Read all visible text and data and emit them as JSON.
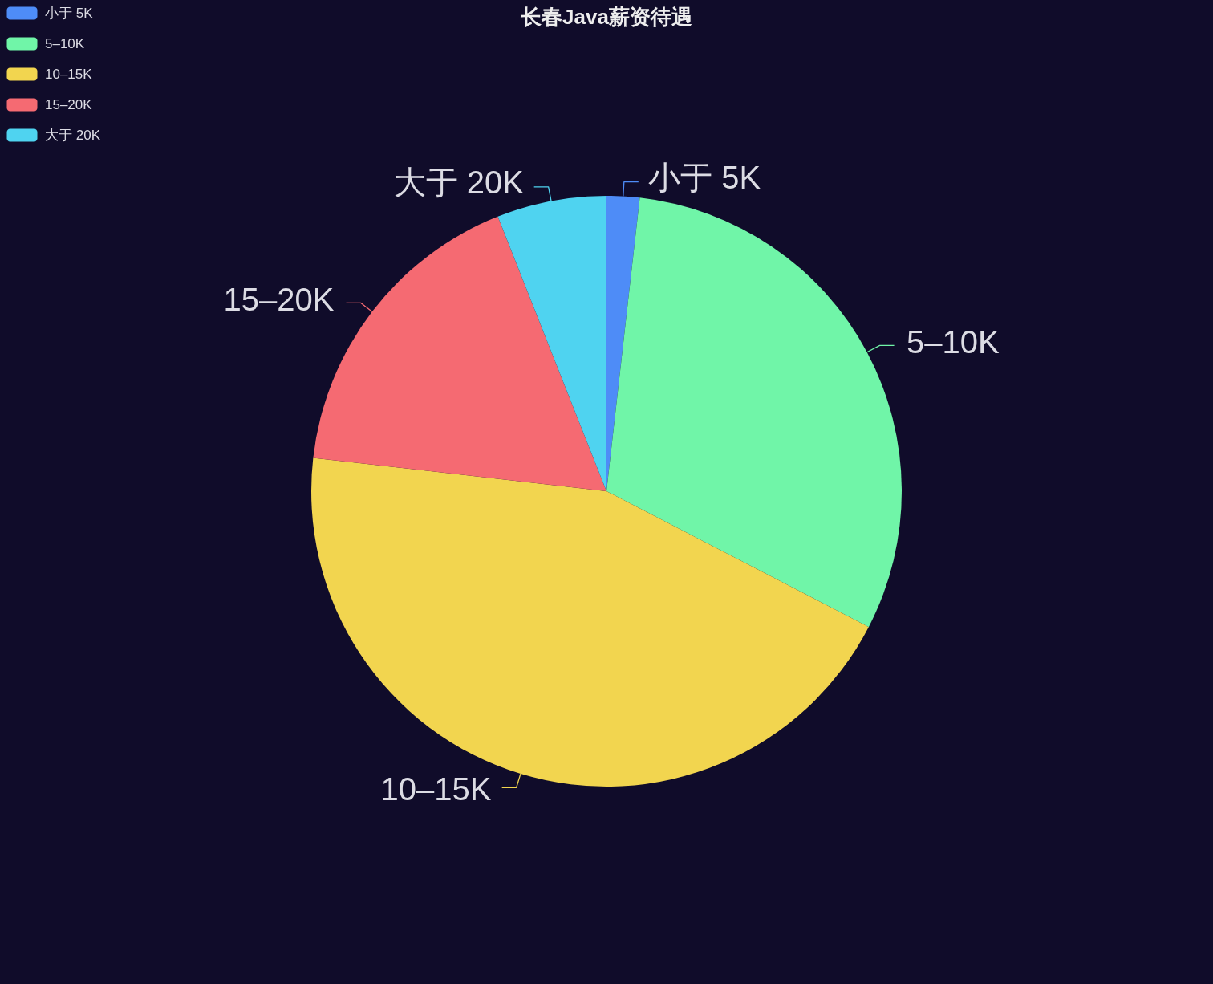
{
  "chart_data": {
    "type": "pie",
    "title": "长春Java薪资待遇",
    "categories": [
      "小于 5K",
      "5–10K",
      "10–15K",
      "15–20K",
      "大于 20K"
    ],
    "values": [
      1.8,
      30.8,
      44.2,
      17.2,
      6.0
    ],
    "colors": [
      "#4e8cf7",
      "#70f5a8",
      "#f2d54f",
      "#f56a72",
      "#4fd3f0"
    ],
    "legend": "top left"
  }
}
